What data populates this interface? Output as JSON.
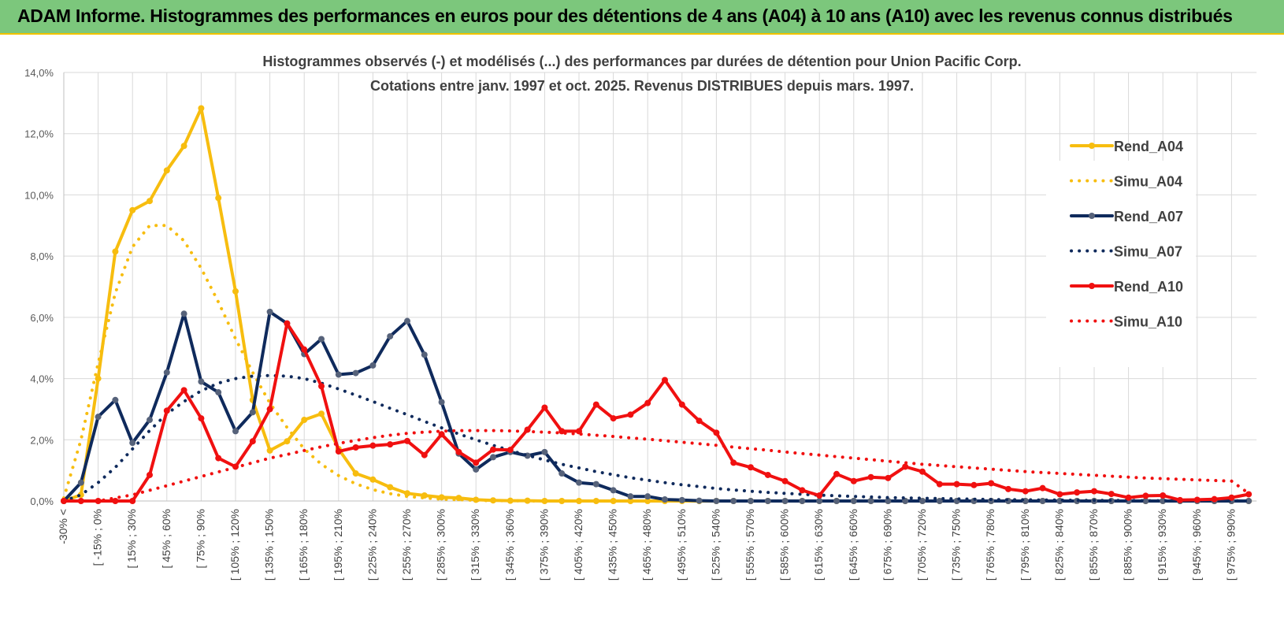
{
  "banner": {
    "text": "ADAM Informe. Histogrammes des performances en euros pour des détentions de 4 ans (A04) à 10 ans (A10) avec les revenus connus distribués"
  },
  "colors": {
    "a04": "#f7bd0f",
    "a07": "#0f2a5c",
    "a07_marker": "#56627a",
    "a10": "#f01010",
    "grid": "#d9d9d9"
  },
  "chart_data": {
    "type": "line",
    "title": [
      "Histogrammes observés (-) et modélisés (...) des performances par durées de détention pour Union Pacific Corp.",
      "Cotations entre janv. 1997 et oct. 2025.  Revenus DISTRIBUES depuis mars. 1997."
    ],
    "ylim": [
      0,
      0.14
    ],
    "y_ticks": [
      "0,0%",
      "2,0%",
      "4,0%",
      "6,0%",
      "8,0%",
      "10,0%",
      "12,0%",
      "14,0%"
    ],
    "x_tick_labels": [
      "-30% <",
      "[ -15% ; 0%",
      "[ 15% ; 30%",
      "[ 45% ; 60%",
      "[ 75% ; 90%",
      "[ 105% ; 120%",
      "[ 135% ; 150%",
      "[ 165% ; 180%",
      "[ 195% ; 210%",
      "[ 225% ; 240%",
      "[ 255% ; 270%",
      "[ 285% ; 300%",
      "[ 315% ; 330%",
      "[ 345% ; 360%",
      "[ 375% ; 390%",
      "[ 405% ; 420%",
      "[ 435% ; 450%",
      "[ 465% ; 480%",
      "[ 495% ; 510%",
      "[ 525% ; 540%",
      "[ 555% ; 570%",
      "[ 585% ; 600%",
      "[ 615% ; 630%",
      "[ 645% ; 660%",
      "[ 675% ; 690%",
      "[ 705% ; 720%",
      "[ 735% ; 750%",
      "[ 765% ; 780%",
      "[ 795% ; 810%",
      "[ 825% ; 840%",
      "[ 855% ; 870%",
      "[ 885% ; 900%",
      "[ 915% ; 930%",
      "[ 945% ; 960%",
      "[ 975% ; 990%"
    ],
    "n_categories": 70,
    "series": [
      {
        "name": "Rend_A04",
        "style": "solid",
        "color": "#f7bd0f",
        "marker": "#f7bd0f",
        "values": [
          0,
          0.002,
          0.04,
          0.0815,
          0.095,
          0.098,
          0.108,
          0.116,
          0.1283,
          0.099,
          0.0685,
          0.033,
          0.0165,
          0.0195,
          0.0265,
          0.0285,
          0.017,
          0.009,
          0.007,
          0.0045,
          0.0025,
          0.0018,
          0.0012,
          0.001,
          0.0004,
          0.0002,
          0.0001,
          0.0001,
          0,
          0,
          0,
          0,
          0,
          0,
          0,
          0,
          0,
          0,
          0,
          0,
          0,
          0,
          0,
          0,
          0,
          0,
          0,
          0,
          0,
          0,
          0,
          0,
          0,
          0,
          0,
          0,
          0,
          0,
          0,
          0,
          0,
          0,
          0,
          0,
          0,
          0,
          0,
          0,
          0,
          0
        ]
      },
      {
        "name": "Simu_A04",
        "style": "dotted",
        "color": "#f7bd0f",
        "values": [
          0.001,
          0.02,
          0.045,
          0.068,
          0.083,
          0.09,
          0.09,
          0.085,
          0.076,
          0.065,
          0.053,
          0.042,
          0.032,
          0.024,
          0.017,
          0.012,
          0.0083,
          0.0056,
          0.0037,
          0.0024,
          0.0015,
          0.001,
          0.0006,
          0.0004,
          0.0002,
          0.0001,
          0.0001,
          0,
          0,
          0,
          0,
          0,
          0,
          0,
          0,
          0,
          0,
          0,
          0,
          0,
          0,
          0,
          0,
          0,
          0,
          0,
          0,
          0,
          0,
          0,
          0,
          0,
          0,
          0,
          0,
          0,
          0,
          0,
          0,
          0,
          0,
          0,
          0,
          0,
          0,
          0,
          0,
          0,
          0,
          0
        ]
      },
      {
        "name": "Rend_A07",
        "style": "solid",
        "color": "#0f2a5c",
        "marker": "#56627a",
        "values": [
          0,
          0.006,
          0.0275,
          0.033,
          0.019,
          0.0265,
          0.042,
          0.0612,
          0.039,
          0.0355,
          0.0228,
          0.029,
          0.0618,
          0.058,
          0.048,
          0.0529,
          0.0413,
          0.0418,
          0.0443,
          0.0538,
          0.0588,
          0.0478,
          0.0323,
          0.0155,
          0.0103,
          0.0143,
          0.016,
          0.0148,
          0.016,
          0.009,
          0.006,
          0.0055,
          0.0035,
          0.0015,
          0.0015,
          0.0005,
          0.0003,
          0.0001,
          0,
          0,
          0,
          0,
          0,
          0,
          0,
          0,
          0,
          0,
          0,
          0,
          0,
          0,
          0,
          0,
          0,
          0,
          0,
          0,
          0,
          0,
          0,
          0,
          0,
          0,
          0,
          0,
          0,
          0,
          0,
          0
        ]
      },
      {
        "name": "Simu_A07",
        "style": "dotted",
        "color": "#0f2a5c",
        "values": [
          0,
          0.002,
          0.006,
          0.011,
          0.017,
          0.023,
          0.0285,
          0.0325,
          0.036,
          0.0385,
          0.04,
          0.0408,
          0.041,
          0.0408,
          0.04,
          0.0385,
          0.0366,
          0.0346,
          0.0325,
          0.0303,
          0.0282,
          0.026,
          0.0239,
          0.0219,
          0.02,
          0.0182,
          0.0165,
          0.0149,
          0.0134,
          0.012,
          0.0108,
          0.0096,
          0.0086,
          0.0076,
          0.0068,
          0.006,
          0.0053,
          0.0047,
          0.0041,
          0.0036,
          0.0032,
          0.0028,
          0.0025,
          0.0022,
          0.0019,
          0.0017,
          0.0015,
          0.0013,
          0.0011,
          0.001,
          0.0009,
          0.0008,
          0.0007,
          0.0006,
          0.0005,
          0.0004,
          0.0004,
          0.0003,
          0.0003,
          0.0002,
          0.0002,
          0.0002,
          0.0002,
          0.0001,
          0.0001,
          0.0001,
          0.0001,
          0.0001,
          0.0001,
          0
        ]
      },
      {
        "name": "Rend_A10",
        "style": "solid",
        "color": "#f01010",
        "marker": "#f01010",
        "values": [
          0,
          0,
          0,
          0,
          0,
          0.0085,
          0.0295,
          0.0362,
          0.027,
          0.014,
          0.0112,
          0.0195,
          0.03,
          0.058,
          0.0495,
          0.0375,
          0.0162,
          0.0175,
          0.0181,
          0.0185,
          0.0196,
          0.015,
          0.0218,
          0.016,
          0.0125,
          0.0168,
          0.0167,
          0.0233,
          0.0305,
          0.0228,
          0.0228,
          0.0315,
          0.027,
          0.0282,
          0.032,
          0.0395,
          0.0315,
          0.0262,
          0.0223,
          0.0125,
          0.011,
          0.0085,
          0.0065,
          0.0035,
          0.0018,
          0.0088,
          0.0065,
          0.0078,
          0.0075,
          0.0112,
          0.0096,
          0.0055,
          0.0055,
          0.0052,
          0.0058,
          0.0039,
          0.0032,
          0.0042,
          0.0022,
          0.0028,
          0.0032,
          0.0023,
          0.0011,
          0.0017,
          0.0018,
          0.0003,
          0.0004,
          0.0006,
          0.0011,
          0.0022
        ]
      },
      {
        "name": "Simu_A10",
        "style": "dotted",
        "color": "#f01010",
        "values": [
          0,
          0,
          0,
          0.001,
          0.002,
          0.0035,
          0.005,
          0.0065,
          0.008,
          0.0095,
          0.011,
          0.0125,
          0.014,
          0.0152,
          0.0165,
          0.0177,
          0.0188,
          0.0198,
          0.0207,
          0.0215,
          0.0221,
          0.0225,
          0.0228,
          0.023,
          0.023,
          0.023,
          0.0229,
          0.0227,
          0.0225,
          0.0222,
          0.0219,
          0.0215,
          0.0211,
          0.0206,
          0.0202,
          0.0197,
          0.0192,
          0.0187,
          0.0182,
          0.0176,
          0.0171,
          0.0166,
          0.016,
          0.0155,
          0.015,
          0.0145,
          0.014,
          0.0135,
          0.013,
          0.0125,
          0.012,
          0.0116,
          0.0112,
          0.0108,
          0.0104,
          0.01,
          0.0096,
          0.0093,
          0.009,
          0.0087,
          0.0084,
          0.0081,
          0.0078,
          0.0075,
          0.0073,
          0.0071,
          0.0069,
          0.0067,
          0.0065,
          0.0025
        ]
      }
    ],
    "legend": [
      "Rend_A04",
      "Simu_A04",
      "Rend_A07",
      "Simu_A07",
      "Rend_A10",
      "Simu_A10"
    ],
    "legend_position": "right"
  }
}
